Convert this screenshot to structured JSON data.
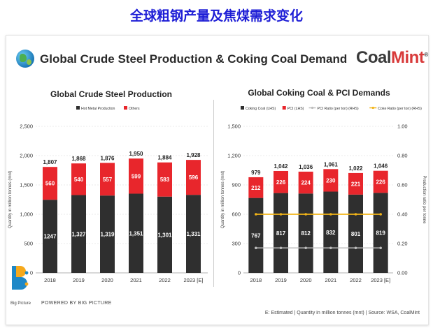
{
  "header": {
    "top_title": "全球粗钢产量及焦煤需求变化",
    "main_title": "Global Crude Steel Production & Coking Coal Demand",
    "brand_part1": "Coal",
    "brand_part2": "Mint",
    "brand_mark": "®"
  },
  "footer": {
    "logo_label": "Big Picture",
    "powered_by": "POWERED BY BIG PICTURE",
    "note": "E: Estimated | Quantity in million tonnes (mnt) | Source: WSA, CoalMint"
  },
  "colors": {
    "dark": "#2f2f2f",
    "red": "#e8262c",
    "grey_line": "#bdbdbd",
    "gold_line": "#f2b418",
    "title_blue": "#1f1fd6"
  },
  "chart_data": [
    {
      "type": "bar",
      "stacked": true,
      "title": "Global Crude Steel Production",
      "categories": [
        "2018",
        "2019",
        "2020",
        "2021",
        "2022",
        "2023 [E]"
      ],
      "series": [
        {
          "name": "Hot Metal Production",
          "values": [
            1247,
            1327,
            1319,
            1351,
            1301,
            1331
          ]
        },
        {
          "name": "Others",
          "values": [
            560,
            540,
            557,
            599,
            583,
            596
          ]
        }
      ],
      "value_labels": [
        [
          "1247",
          "1,327",
          "1,319",
          "1,351",
          "1,301",
          "1,331"
        ],
        [
          "560",
          "540",
          "557",
          "599",
          "583",
          "596"
        ]
      ],
      "totals": [
        "1,807",
        "1,868",
        "1,876",
        "1,950",
        "1,884",
        "1,928"
      ],
      "ylabel": "Quantity in million tonnes (mnt)",
      "ylim": [
        0,
        2500
      ],
      "yticks": [
        "0",
        "500",
        "1,000",
        "1,500",
        "2,000",
        "2,500"
      ],
      "legend": "top-left"
    },
    {
      "type": "bar",
      "stacked": true,
      "title": "Global Coking Coal & PCI Demands",
      "categories": [
        "2018",
        "2019",
        "2020",
        "2021",
        "2022",
        "2023 [E]"
      ],
      "series": [
        {
          "name": "Coking Coal (LHS)",
          "values": [
            767,
            817,
            812,
            832,
            801,
            819
          ]
        },
        {
          "name": "PCI (LHS)",
          "values": [
            212,
            226,
            224,
            230,
            221,
            226
          ]
        }
      ],
      "totals": [
        "979",
        "1,042",
        "1,036",
        "1,061",
        "1,022",
        "1,046"
      ],
      "lines": [
        {
          "name": "PCI Ratio (per ton) (RHS)",
          "axis": "right",
          "values": [
            0.17,
            0.17,
            0.17,
            0.17,
            0.17,
            0.17
          ]
        },
        {
          "name": "Coke Ratio (per ton) (RHS)",
          "axis": "right",
          "values": [
            0.4,
            0.4,
            0.4,
            0.4,
            0.4,
            0.4
          ]
        }
      ],
      "ylabel": "Quantity in million tonnes (mnt)",
      "y2label": "Production ratio per tonne",
      "ylim": [
        0,
        1500
      ],
      "y2lim": [
        0,
        1.0
      ],
      "yticks": [
        "0",
        "300",
        "600",
        "900",
        "1,200",
        "1,500"
      ],
      "y2ticks": [
        "0.00",
        "0.20",
        "0.40",
        "0.60",
        "0.80",
        "1.00"
      ],
      "legend": "top-left"
    }
  ]
}
